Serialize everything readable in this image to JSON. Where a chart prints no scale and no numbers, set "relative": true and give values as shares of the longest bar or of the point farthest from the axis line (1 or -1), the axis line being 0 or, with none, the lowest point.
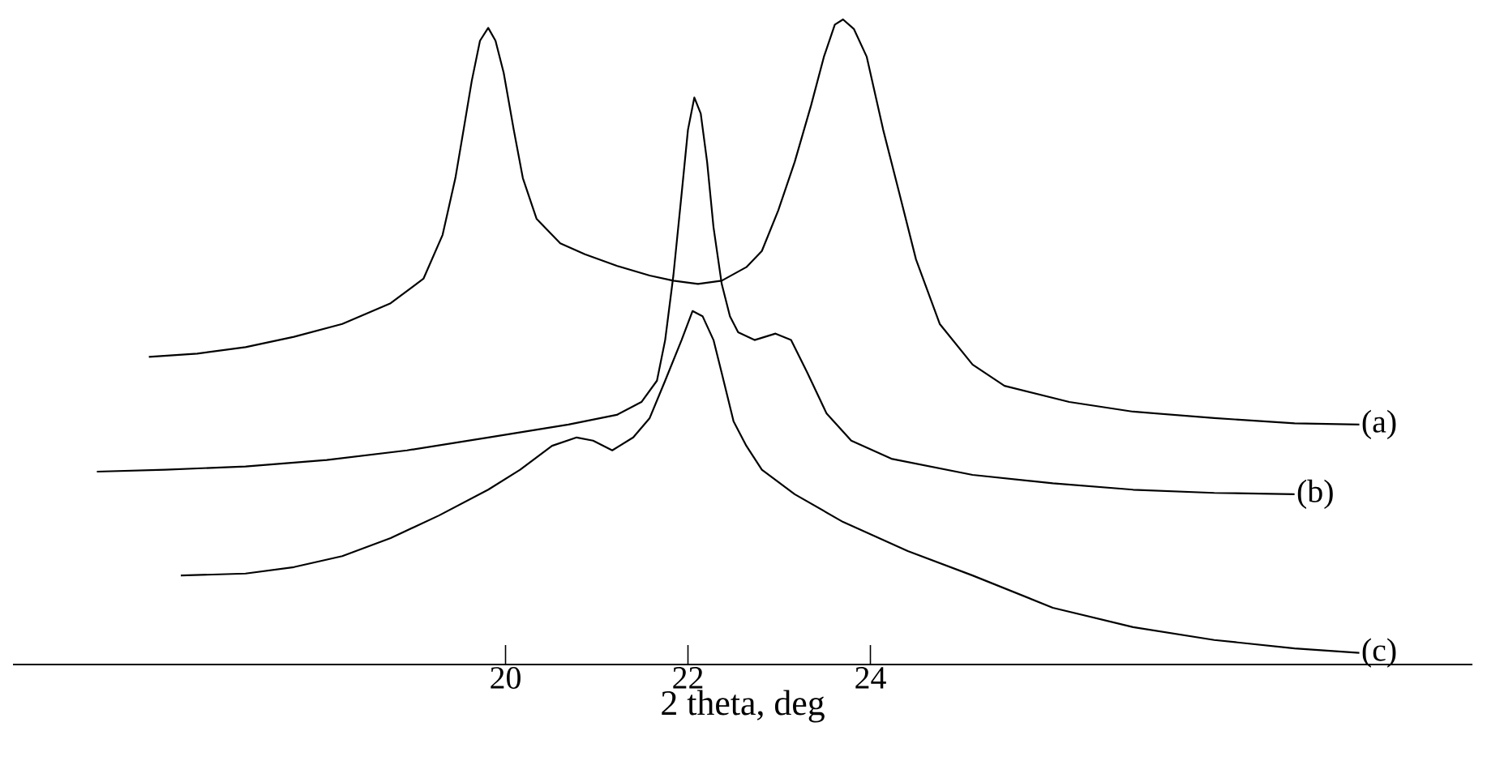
{
  "chart_data": {
    "type": "line",
    "xlabel": "2 theta, deg",
    "relative": true,
    "tick_labels": "x",
    "xlim": [
      14.6,
      30.6
    ],
    "xticks": [
      20,
      22,
      24
    ],
    "series": [
      {
        "name": "(a)",
        "color": "#000000",
        "x": [
          16.09,
          16.62,
          17.15,
          17.68,
          18.21,
          18.74,
          19.1,
          19.31,
          19.45,
          19.54,
          19.63,
          19.72,
          19.81,
          19.89,
          19.98,
          20.09,
          20.19,
          20.34,
          20.6,
          20.87,
          21.22,
          21.58,
          21.84,
          22.11,
          22.37,
          22.64,
          22.81,
          22.99,
          23.17,
          23.35,
          23.49,
          23.61,
          23.7,
          23.82,
          23.96,
          24.14,
          24.32,
          24.5,
          24.76,
          25.12,
          25.47,
          26.18,
          26.88,
          27.77,
          28.65,
          29.36
        ],
        "values": [
          0.477,
          0.482,
          0.492,
          0.508,
          0.528,
          0.56,
          0.598,
          0.666,
          0.754,
          0.829,
          0.905,
          0.967,
          0.987,
          0.967,
          0.917,
          0.829,
          0.754,
          0.691,
          0.653,
          0.636,
          0.618,
          0.603,
          0.595,
          0.59,
          0.595,
          0.616,
          0.641,
          0.704,
          0.779,
          0.867,
          0.942,
          0.992,
          1,
          0.985,
          0.942,
          0.829,
          0.729,
          0.628,
          0.528,
          0.465,
          0.432,
          0.407,
          0.392,
          0.382,
          0.374,
          0.372
        ]
      },
      {
        "name": "(b)",
        "color": "#000000",
        "x": [
          15.52,
          16.27,
          17.15,
          18.04,
          18.92,
          19.81,
          20.69,
          21.22,
          21.49,
          21.66,
          21.75,
          21.84,
          21.93,
          22.0,
          22.07,
          22.14,
          22.21,
          22.28,
          22.37,
          22.46,
          22.55,
          22.73,
          22.96,
          23.13,
          23.31,
          23.52,
          23.79,
          24.23,
          25.12,
          26.0,
          26.88,
          27.77,
          28.65
        ],
        "values": [
          0.299,
          0.302,
          0.307,
          0.317,
          0.332,
          0.352,
          0.372,
          0.387,
          0.407,
          0.44,
          0.503,
          0.603,
          0.729,
          0.829,
          0.879,
          0.854,
          0.779,
          0.678,
          0.59,
          0.54,
          0.515,
          0.503,
          0.513,
          0.503,
          0.452,
          0.389,
          0.347,
          0.319,
          0.294,
          0.281,
          0.271,
          0.266,
          0.264
        ]
      },
      {
        "name": "(c)",
        "color": "#000000",
        "x": [
          16.44,
          17.15,
          17.68,
          18.21,
          18.74,
          19.27,
          19.81,
          20.16,
          20.51,
          20.78,
          20.96,
          21.17,
          21.4,
          21.58,
          21.75,
          21.93,
          22.05,
          22.16,
          22.28,
          22.37,
          22.5,
          22.64,
          22.81,
          23.17,
          23.7,
          24.41,
          25.12,
          26.0,
          26.88,
          27.77,
          28.65,
          29.36
        ],
        "values": [
          0.138,
          0.141,
          0.151,
          0.168,
          0.196,
          0.231,
          0.271,
          0.302,
          0.339,
          0.352,
          0.347,
          0.332,
          0.352,
          0.382,
          0.44,
          0.503,
          0.548,
          0.54,
          0.503,
          0.452,
          0.377,
          0.339,
          0.302,
          0.264,
          0.221,
          0.176,
          0.138,
          0.088,
          0.058,
          0.038,
          0.025,
          0.018
        ]
      }
    ]
  }
}
